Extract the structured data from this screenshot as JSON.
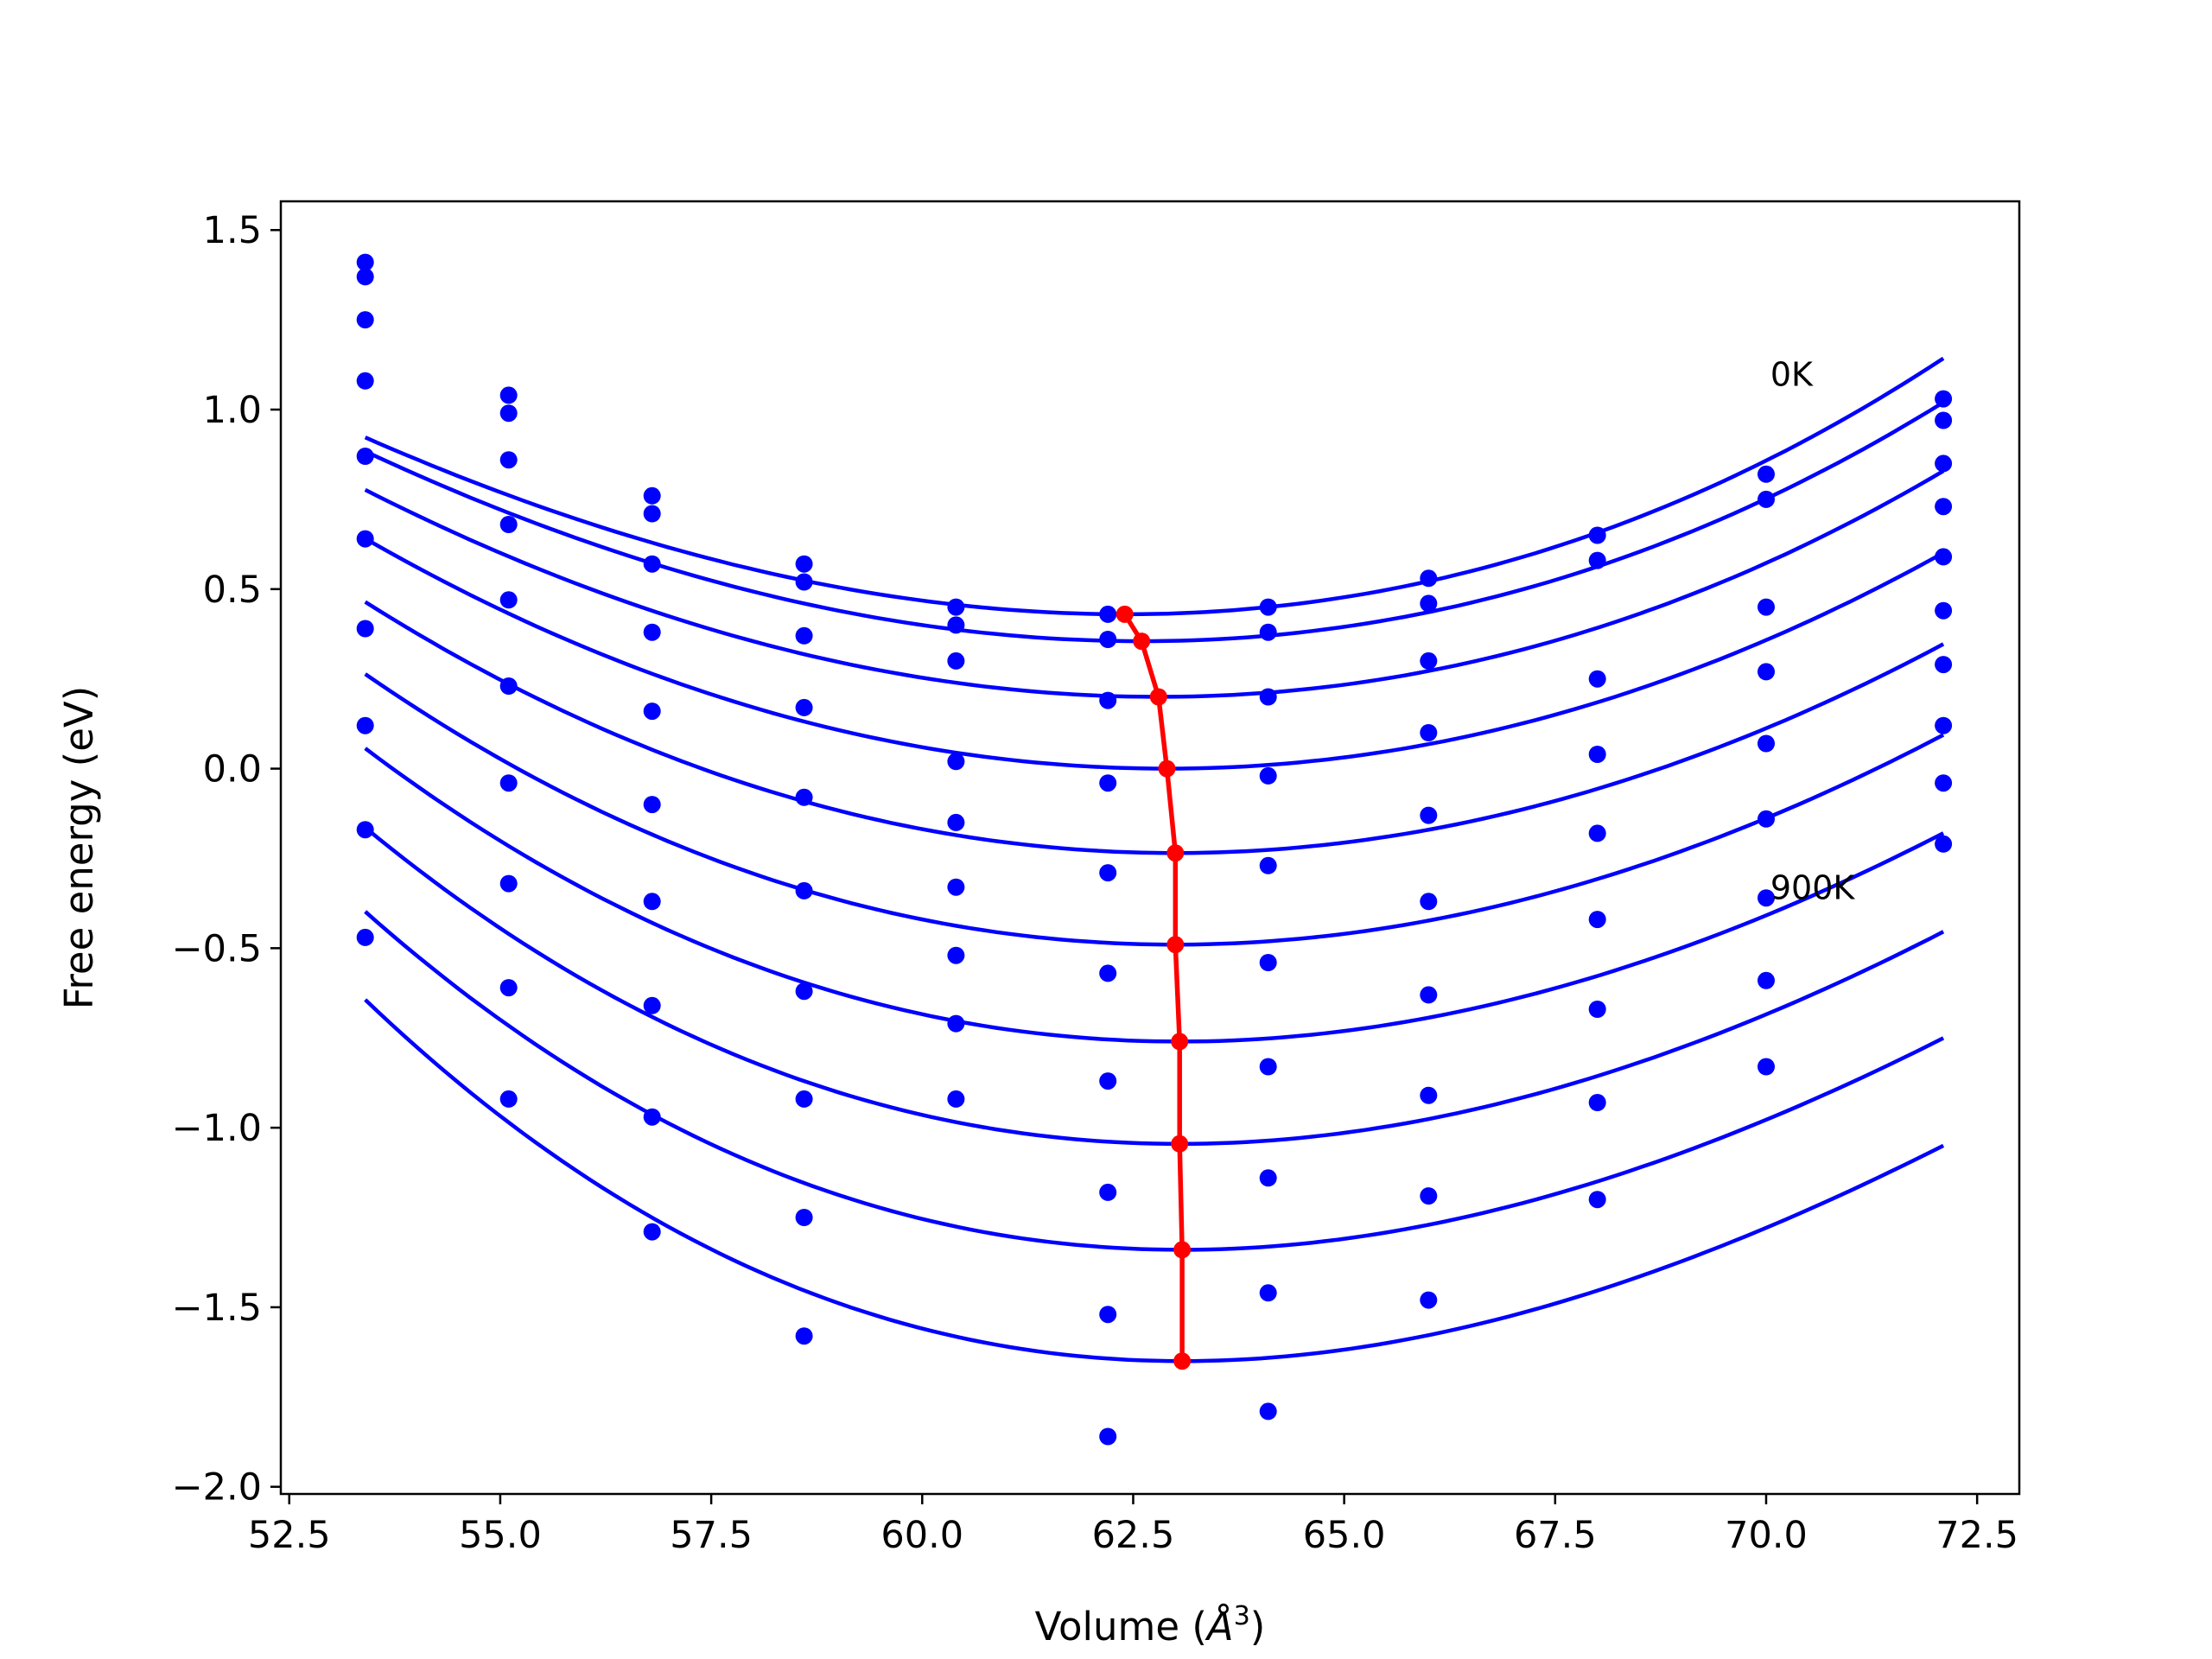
{
  "chart_data": {
    "type": "scatter",
    "xlabel": "Volume (Å³)",
    "xlabel_text": "Volume (",
    "xlabel_symbol": "Å",
    "xlabel_sup": "3",
    "xlabel_close": ")",
    "ylabel": "Free energy (eV)",
    "xlim": [
      52.4,
      73.0
    ],
    "ylim": [
      -2.02,
      1.58
    ],
    "x_ticks": [
      52.5,
      55.0,
      57.5,
      60.0,
      62.5,
      65.0,
      67.5,
      70.0,
      72.5
    ],
    "x_tick_labels": [
      "52.5",
      "55.0",
      "57.5",
      "60.0",
      "62.5",
      "65.0",
      "67.5",
      "70.0",
      "72.5"
    ],
    "y_ticks": [
      1.5,
      1.0,
      0.5,
      0.0,
      -0.5,
      -1.0,
      -1.5,
      -2.0
    ],
    "y_tick_labels": [
      "1.5",
      "1.0",
      "0.5",
      "0.0",
      "−0.5",
      "−1.0",
      "−1.5",
      "−2.0"
    ],
    "grid": false,
    "annotations": [
      {
        "text": "0K",
        "x": 70.05,
        "y": 1.1
      },
      {
        "text": "900K",
        "x": 70.05,
        "y": -0.33
      }
    ],
    "volumes": [
      53.4,
      55.1,
      56.8,
      58.6,
      60.4,
      62.2,
      64.1,
      66.0,
      68.0,
      70.0,
      72.1
    ],
    "series": [
      {
        "values": [
          1.41,
          1.04,
          0.76,
          0.57,
          0.45,
          0.43,
          0.45,
          0.53,
          0.65,
          0.82,
          1.03
        ],
        "fit": {
          "v0": 62.4,
          "f0": 0.43,
          "a": 0.0068,
          "c": 8e-05
        }
      },
      {
        "values": [
          1.37,
          0.99,
          0.71,
          0.52,
          0.4,
          0.36,
          0.38,
          0.46,
          0.58,
          0.75,
          0.97
        ],
        "fit": {
          "v0": 62.6,
          "f0": 0.355,
          "a": 0.0068,
          "c": 6e-05
        }
      },
      {
        "values": [
          1.25,
          0.86,
          0.57,
          0.37,
          0.3,
          0.19,
          0.2,
          0.3,
          0.25,
          0.45,
          0.85
        ],
        "fit": {
          "v0": 62.8,
          "f0": 0.2,
          "a": 0.0069,
          "c": 4e-05
        }
      },
      {
        "values": [
          1.08,
          0.68,
          0.38,
          0.17,
          0.02,
          -0.04,
          -0.02,
          0.1,
          0.04,
          0.27,
          0.73
        ],
        "fit": {
          "v0": 62.9,
          "f0": 0.0,
          "a": 0.0071,
          "c": 0.0
        }
      },
      {
        "values": [
          0.87,
          0.47,
          0.16,
          -0.08,
          -0.15,
          -0.29,
          -0.27,
          -0.13,
          -0.18,
          0.07,
          0.59
        ],
        "fit": {
          "v0": 63.0,
          "f0": -0.235,
          "a": 0.0073,
          "c": -3e-05
        }
      },
      {
        "values": [
          0.64,
          0.23,
          -0.1,
          -0.34,
          -0.33,
          -0.57,
          -0.54,
          -0.37,
          -0.42,
          -0.14,
          0.44
        ],
        "fit": {
          "v0": 63.0,
          "f0": -0.49,
          "a": 0.0076,
          "c": -6e-05
        }
      },
      {
        "values": [
          0.39,
          -0.04,
          -0.37,
          -0.62,
          -0.52,
          -0.87,
          -0.83,
          -0.63,
          -0.67,
          -0.36,
          0.29
        ],
        "fit": {
          "v0": 63.05,
          "f0": -0.76,
          "a": 0.0079,
          "c": -9e-05
        }
      },
      {
        "values": [
          0.12,
          -0.32,
          -0.66,
          -0.92,
          -0.71,
          -1.18,
          -1.14,
          -0.91,
          -0.93,
          -0.59,
          0.12
        ],
        "fit": {
          "v0": 63.05,
          "f0": -1.045,
          "a": 0.0083,
          "c": -0.00012
        }
      },
      {
        "values": [
          -0.17,
          -0.61,
          -0.97,
          -1.25,
          -0.92,
          -1.52,
          -1.46,
          -1.19,
          -1.2,
          -0.83,
          -0.04
        ],
        "fit": {
          "v0": 63.08,
          "f0": -1.34,
          "a": 0.0086,
          "c": -0.00015
        }
      },
      {
        "values": [
          -0.47,
          -0.92,
          -1.29,
          -1.58,
          null,
          -1.86,
          -1.79,
          -1.48,
          null,
          null,
          -0.21
        ],
        "fit": {
          "v0": 63.08,
          "f0": -1.65,
          "a": 0.009,
          "c": -0.00018
        }
      }
    ],
    "min_curve": {
      "x": [
        62.4,
        62.6,
        62.8,
        62.9,
        63.0,
        63.0,
        63.05,
        63.05,
        63.08,
        63.08
      ],
      "y": [
        0.43,
        0.355,
        0.2,
        0.0,
        -0.235,
        -0.49,
        -0.76,
        -1.045,
        -1.34,
        -1.65
      ]
    },
    "colors": {
      "points": "#0000ff",
      "fits": "#0000ff",
      "minimum": "#ff0000",
      "axes": "#000000"
    }
  }
}
